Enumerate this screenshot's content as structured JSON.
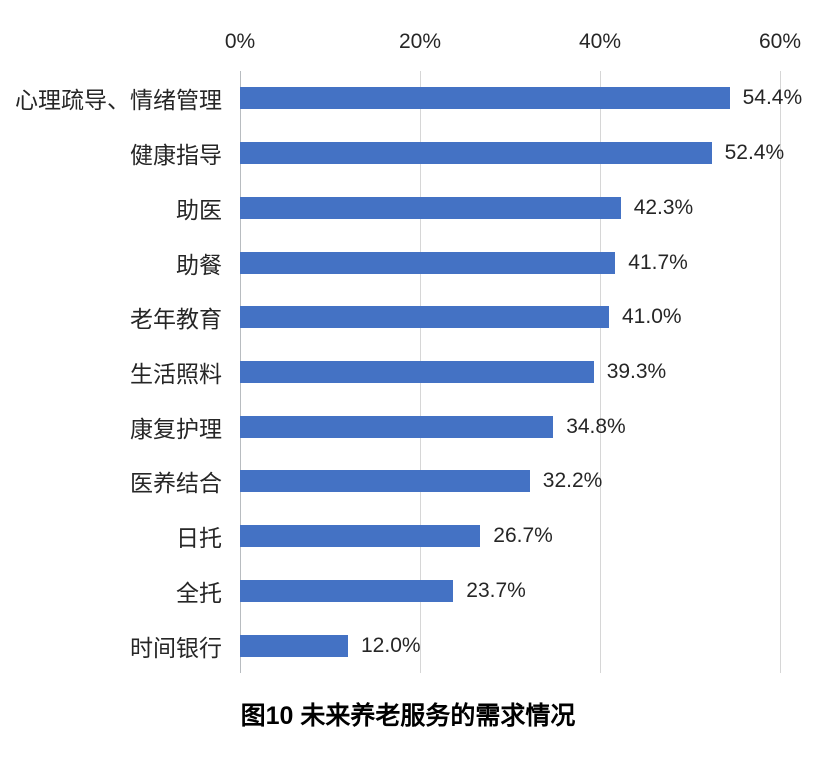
{
  "chart_data": {
    "type": "bar",
    "orientation": "horizontal",
    "title": "图10 未来养老服务的需求情况",
    "categories": [
      "心理疏导、情绪管理",
      "健康指导",
      "助医",
      "助餐",
      "老年教育",
      "生活照料",
      "康复护理",
      "医养结合",
      "日托",
      "全托",
      "时间银行"
    ],
    "values": [
      54.4,
      52.4,
      42.3,
      41.7,
      41.0,
      39.3,
      34.8,
      32.2,
      26.7,
      23.7,
      12.0
    ],
    "value_labels": [
      "54.4%",
      "52.4%",
      "42.3%",
      "41.7%",
      "41.0%",
      "39.3%",
      "34.8%",
      "32.2%",
      "26.7%",
      "23.7%",
      "12.0%"
    ],
    "x_ticks": [
      "0%",
      "20%",
      "40%",
      "60%"
    ],
    "x_tick_values": [
      0,
      20,
      40,
      60
    ],
    "xlim": [
      0,
      60
    ],
    "x_axis_position": "top",
    "grid": true,
    "legend": "none",
    "bar_color": "#4472C4",
    "gridline_color": "#D6D6D6",
    "axis_line_color": "#B8BCC0",
    "text_color": "#262626"
  }
}
